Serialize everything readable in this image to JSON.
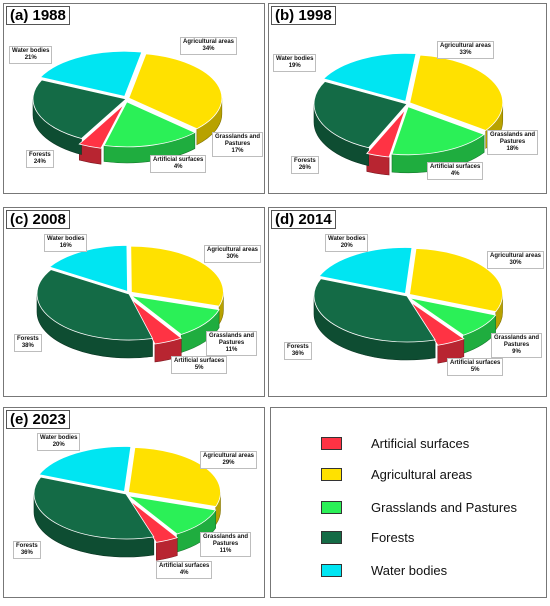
{
  "colors": {
    "artificial": "#ff3344",
    "agricultural": "#ffe100",
    "grasslands": "#2bf057",
    "forests": "#146b46",
    "water": "#00e5f2"
  },
  "legend": [
    {
      "key": "artificial",
      "label": "Artificial surfaces"
    },
    {
      "key": "agricultural",
      "label": "Agricultural areas"
    },
    {
      "key": "grasslands",
      "label": "Grasslands and Pastures"
    },
    {
      "key": "forests",
      "label": "Forests"
    },
    {
      "key": "water",
      "label": "Water bodies"
    }
  ],
  "chart_data": [
    {
      "type": "pie",
      "title": "(a) 1988",
      "categories": [
        "Water bodies",
        "Agricultural areas",
        "Grasslands and Pastures",
        "Artificial surfaces",
        "Forests"
      ],
      "labels": {
        "water": [
          "Water bodies",
          "21%"
        ],
        "agricultural": [
          "Agricultural areas",
          "34%"
        ],
        "grasslands": [
          "Grasslands and",
          "Pastures",
          "17%"
        ],
        "artificial": [
          "Artificial surfaces",
          "4%"
        ],
        "forests": [
          "Forests",
          "24%"
        ]
      },
      "values": {
        "water": 21,
        "agricultural": 34,
        "grasslands": 17,
        "artificial": 4,
        "forests": 24
      }
    },
    {
      "type": "pie",
      "title": "(b) 1998",
      "categories": [
        "Water bodies",
        "Agricultural areas",
        "Grasslands and Pastures",
        "Artificial surfaces",
        "Forests"
      ],
      "labels": {
        "water": [
          "Water bodies",
          "19%"
        ],
        "agricultural": [
          "Agricultural areas",
          "33%"
        ],
        "grasslands": [
          "Grasslands and",
          "Pastures",
          "18%"
        ],
        "artificial": [
          "Artificial surfaces",
          "4%"
        ],
        "forests": [
          "Forests",
          "26%"
        ]
      },
      "values": {
        "water": 19,
        "agricultural": 33,
        "grasslands": 18,
        "artificial": 4,
        "forests": 26
      }
    },
    {
      "type": "pie",
      "title": "(c) 2008",
      "categories": [
        "Water bodies",
        "Agricultural areas",
        "Grasslands and Pastures",
        "Artificial surfaces",
        "Forests"
      ],
      "labels": {
        "water": [
          "Water bodies",
          "16%"
        ],
        "agricultural": [
          "Agricultural areas",
          "30%"
        ],
        "grasslands": [
          "Grasslands and",
          "Pastures",
          "11%"
        ],
        "artificial": [
          "Artificial surfaces",
          "5%"
        ],
        "forests": [
          "Forests",
          "38%"
        ]
      },
      "values": {
        "water": 16,
        "agricultural": 30,
        "grasslands": 11,
        "artificial": 5,
        "forests": 38
      }
    },
    {
      "type": "pie",
      "title": "(d) 2014",
      "categories": [
        "Water bodies",
        "Agricultural areas",
        "Grasslands and Pastures",
        "Artificial surfaces",
        "Forests"
      ],
      "labels": {
        "water": [
          "Water bodies",
          "20%"
        ],
        "agricultural": [
          "Agricultural areas",
          "30%"
        ],
        "grasslands": [
          "Grasslands and",
          "Pastures",
          "9%"
        ],
        "artificial": [
          "Artificial surfaces",
          "5%"
        ],
        "forests": [
          "Forests",
          "36%"
        ]
      },
      "values": {
        "water": 20,
        "agricultural": 30,
        "grasslands": 9,
        "artificial": 5,
        "forests": 36
      }
    },
    {
      "type": "pie",
      "title": "(e) 2023",
      "categories": [
        "Water bodies",
        "Agricultural areas",
        "Grasslands and Pastures",
        "Artificial surfaces",
        "Forests"
      ],
      "labels": {
        "water": [
          "Water bodies",
          "20%"
        ],
        "agricultural": [
          "Agricultural areas",
          "29%"
        ],
        "grasslands": [
          "Grasslands and",
          "Pastures",
          "11%"
        ],
        "artificial": [
          "Artificial surfaces",
          "4%"
        ],
        "forests": [
          "Forests",
          "36%"
        ]
      },
      "values": {
        "water": 20,
        "agricultural": 29,
        "grasslands": 11,
        "artificial": 4,
        "forests": 36
      }
    }
  ]
}
